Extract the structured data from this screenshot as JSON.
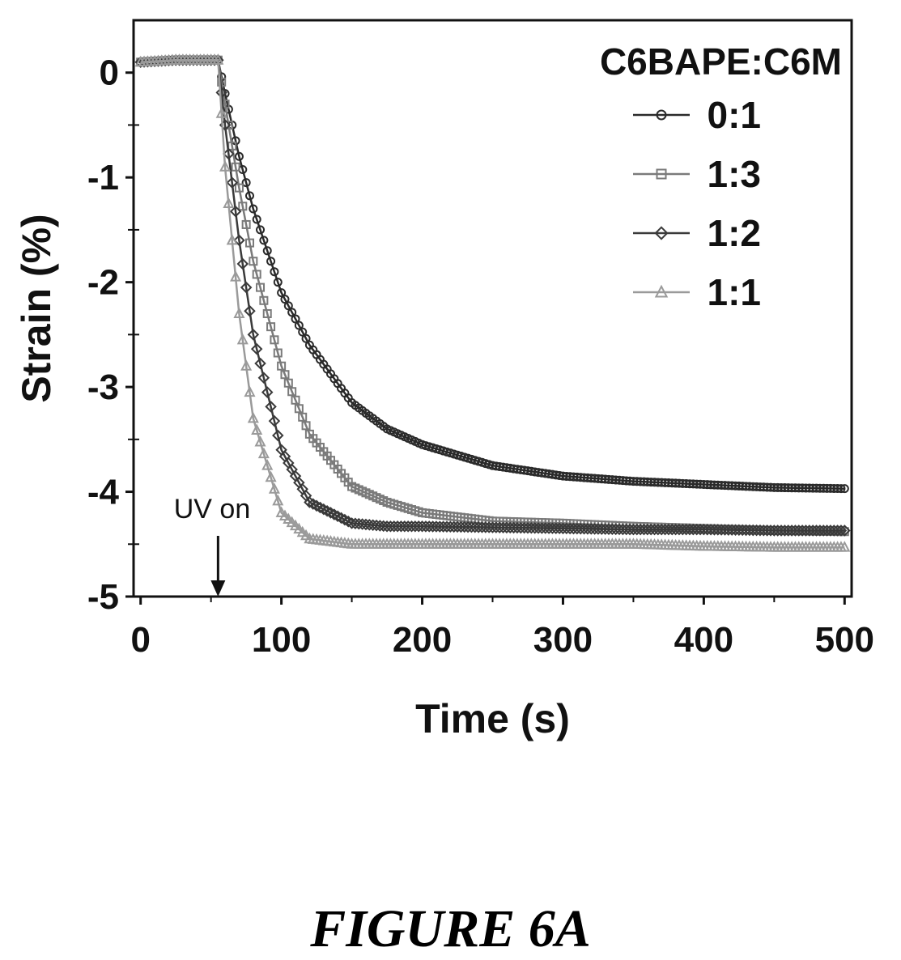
{
  "caption": "FIGURE 6A",
  "chart_data": {
    "type": "scatter",
    "xlabel": "Time (s)",
    "ylabel": "Strain (%)",
    "xlim": [
      -5,
      505
    ],
    "ylim": [
      -5,
      0.5
    ],
    "xticks": [
      0,
      100,
      200,
      300,
      400,
      500
    ],
    "yticks": [
      0,
      -1,
      -2,
      -3,
      -4,
      -5
    ],
    "xtick_labels": [
      "0",
      "100",
      "200",
      "300",
      "400",
      "500"
    ],
    "ytick_labels": [
      "0",
      "-1",
      "-2",
      "-3",
      "-4",
      "-5"
    ],
    "grid": false,
    "legend": {
      "title": "C6BAPE:C6M",
      "position": "top-right"
    },
    "annotation": {
      "text": "UV on",
      "x": 55,
      "arrow_to_y": -5
    },
    "series": [
      {
        "name": "0:1",
        "marker": "circle",
        "color": "#2a2a2a",
        "x": [
          0,
          25,
          55,
          60,
          70,
          80,
          100,
          120,
          150,
          175,
          200,
          250,
          300,
          350,
          400,
          450,
          500
        ],
        "y": [
          0.1,
          0.12,
          0.12,
          -0.2,
          -0.8,
          -1.3,
          -2.1,
          -2.6,
          -3.15,
          -3.4,
          -3.55,
          -3.75,
          -3.85,
          -3.9,
          -3.93,
          -3.96,
          -3.97
        ]
      },
      {
        "name": "1:3",
        "marker": "square",
        "color": "#7a7a7a",
        "x": [
          0,
          25,
          55,
          60,
          70,
          80,
          100,
          120,
          150,
          175,
          200,
          250,
          300,
          350,
          400,
          450,
          500
        ],
        "y": [
          0.1,
          0.12,
          0.12,
          -0.3,
          -1.1,
          -1.8,
          -2.8,
          -3.45,
          -3.95,
          -4.1,
          -4.2,
          -4.28,
          -4.3,
          -4.33,
          -4.35,
          -4.37,
          -4.38
        ]
      },
      {
        "name": "1:2",
        "marker": "diamond",
        "color": "#3a3a3a",
        "x": [
          0,
          25,
          55,
          60,
          70,
          80,
          100,
          120,
          150,
          175,
          200,
          250,
          300,
          350,
          400,
          450,
          500
        ],
        "y": [
          0.1,
          0.12,
          0.12,
          -0.5,
          -1.6,
          -2.5,
          -3.6,
          -4.1,
          -4.3,
          -4.33,
          -4.33,
          -4.34,
          -4.35,
          -4.36,
          -4.36,
          -4.37,
          -4.37
        ]
      },
      {
        "name": "1:1",
        "marker": "triangle",
        "color": "#9a9a9a",
        "x": [
          0,
          25,
          55,
          60,
          70,
          80,
          100,
          120,
          150,
          175,
          200,
          250,
          300,
          350,
          400,
          450,
          500
        ],
        "y": [
          0.1,
          0.12,
          0.12,
          -0.9,
          -2.3,
          -3.3,
          -4.2,
          -4.45,
          -4.5,
          -4.5,
          -4.5,
          -4.5,
          -4.5,
          -4.5,
          -4.52,
          -4.53,
          -4.53
        ]
      }
    ]
  }
}
